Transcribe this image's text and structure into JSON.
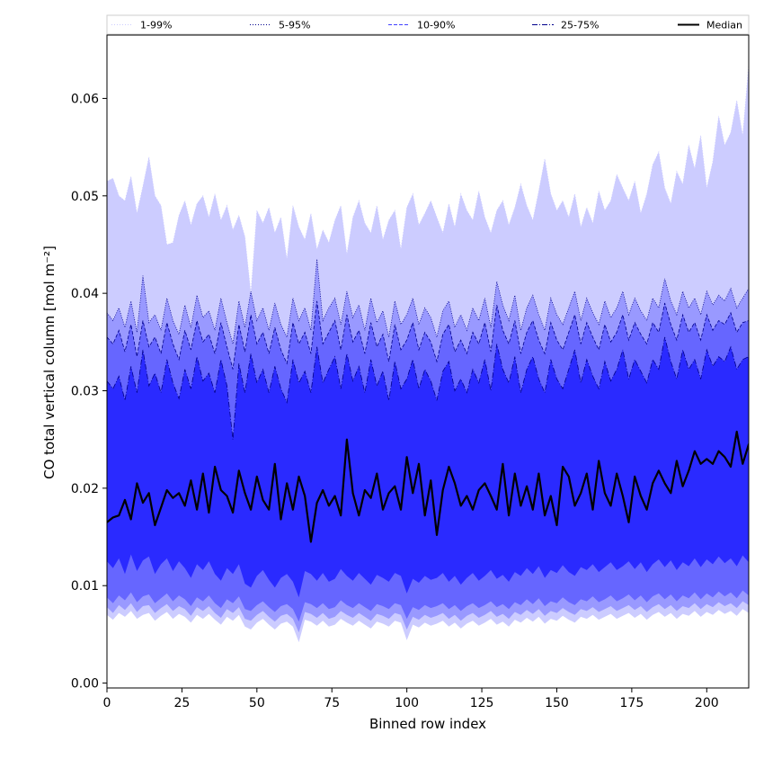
{
  "chart_data": {
    "type": "area",
    "xlabel": "Binned row index",
    "ylabel": "CO total vertical column [mol m⁻²]",
    "xlim": [
      0,
      214
    ],
    "ylim": [
      -0.0005,
      0.0665
    ],
    "xticks": [
      0,
      25,
      50,
      75,
      100,
      125,
      150,
      175,
      200
    ],
    "yticks": [
      0.0,
      0.01,
      0.02,
      0.03,
      0.04,
      0.05,
      0.06
    ],
    "ytick_labels": [
      "0.00",
      "0.01",
      "0.02",
      "0.03",
      "0.04",
      "0.05",
      "0.06"
    ],
    "grid": false,
    "legend_position": "top",
    "legend": [
      {
        "label": "1-99%",
        "color": "#ccccff",
        "style": "dotted"
      },
      {
        "label": "5-95%",
        "color": "#00008b",
        "style": "dotted"
      },
      {
        "label": "10-90%",
        "color": "#4040ff",
        "style": "dashed"
      },
      {
        "label": "25-75%",
        "color": "#00008b",
        "style": "dashdot"
      },
      {
        "label": "Median",
        "color": "#000000",
        "style": "solid"
      }
    ],
    "colors": {
      "band_1_99": "#ccccff",
      "band_5_95": "#9999ff",
      "band_10_90": "#6666ff",
      "band_25_75": "#2a2aff",
      "median": "#000000",
      "edge_1_99": "#ccccff",
      "edge_5_95": "#00008b",
      "edge_10_90": "#00008b",
      "edge_25_75": "#00008b"
    },
    "x_step": 2,
    "series_description_note": "",
    "series": [
      {
        "name": "1-99%",
        "kind": "band",
        "lower": [
          0.007,
          0.0065,
          0.0072,
          0.0068,
          0.0074,
          0.0066,
          0.007,
          0.0072,
          0.0064,
          0.0069,
          0.0073,
          0.0066,
          0.0071,
          0.0068,
          0.0062,
          0.007,
          0.0066,
          0.0071,
          0.0065,
          0.006,
          0.0068,
          0.0064,
          0.007,
          0.0058,
          0.0055,
          0.0062,
          0.0066,
          0.006,
          0.0055,
          0.0061,
          0.0063,
          0.0058,
          0.0042,
          0.0065,
          0.0063,
          0.0059,
          0.0064,
          0.0058,
          0.006,
          0.0066,
          0.0062,
          0.0059,
          0.0064,
          0.006,
          0.0056,
          0.0063,
          0.0061,
          0.0058,
          0.0064,
          0.0062,
          0.0044,
          0.006,
          0.0057,
          0.0062,
          0.0059,
          0.0061,
          0.0064,
          0.0058,
          0.0062,
          0.0056,
          0.0061,
          0.0064,
          0.0059,
          0.0062,
          0.0066,
          0.006,
          0.0063,
          0.0058,
          0.0065,
          0.0062,
          0.0067,
          0.0063,
          0.0068,
          0.0061,
          0.0066,
          0.0064,
          0.0069,
          0.0065,
          0.0062,
          0.0068,
          0.0066,
          0.007,
          0.0065,
          0.0068,
          0.0071,
          0.0066,
          0.0069,
          0.0072,
          0.0067,
          0.0071,
          0.0065,
          0.007,
          0.0073,
          0.0068,
          0.0072,
          0.0066,
          0.0071,
          0.0069,
          0.0074,
          0.0068,
          0.0073,
          0.007,
          0.0075,
          0.0071,
          0.0074,
          0.0069,
          0.0076,
          0.0072,
          0.0077
        ],
        "upper": [
          0.0515,
          0.0518,
          0.05,
          0.0495,
          0.052,
          0.0482,
          0.051,
          0.054,
          0.05,
          0.049,
          0.045,
          0.0452,
          0.048,
          0.0495,
          0.047,
          0.0492,
          0.05,
          0.0478,
          0.0502,
          0.0475,
          0.049,
          0.0465,
          0.048,
          0.0458,
          0.04,
          0.0485,
          0.0472,
          0.0488,
          0.0462,
          0.0478,
          0.0435,
          0.049,
          0.0468,
          0.0455,
          0.0482,
          0.0445,
          0.0465,
          0.0452,
          0.0475,
          0.049,
          0.044,
          0.0478,
          0.0495,
          0.0472,
          0.0462,
          0.049,
          0.0455,
          0.0475,
          0.0485,
          0.0445,
          0.0488,
          0.0502,
          0.047,
          0.0482,
          0.0495,
          0.0478,
          0.0462,
          0.0492,
          0.0468,
          0.0502,
          0.0485,
          0.0475,
          0.0505,
          0.0478,
          0.0462,
          0.0485,
          0.0495,
          0.047,
          0.0488,
          0.0512,
          0.049,
          0.0475,
          0.0505,
          0.0538,
          0.0502,
          0.0485,
          0.0495,
          0.0478,
          0.0502,
          0.0468,
          0.0488,
          0.0472,
          0.0505,
          0.0485,
          0.0495,
          0.0522,
          0.0508,
          0.0495,
          0.0515,
          0.0482,
          0.0502,
          0.0532,
          0.0545,
          0.0508,
          0.0492,
          0.0525,
          0.0512,
          0.0552,
          0.0528,
          0.0562,
          0.0508,
          0.0535,
          0.0582,
          0.0552,
          0.0565,
          0.0598,
          0.0562,
          0.0635,
          0.0545
        ]
      },
      {
        "name": "5-95%",
        "kind": "band",
        "lower": [
          0.0078,
          0.0072,
          0.008,
          0.0075,
          0.0082,
          0.0073,
          0.0079,
          0.008,
          0.0072,
          0.0077,
          0.0081,
          0.0074,
          0.0079,
          0.0076,
          0.0069,
          0.0078,
          0.0074,
          0.0079,
          0.0072,
          0.0067,
          0.0076,
          0.0072,
          0.0078,
          0.0066,
          0.0064,
          0.007,
          0.0074,
          0.0068,
          0.0063,
          0.0069,
          0.0071,
          0.0066,
          0.0052,
          0.0073,
          0.0071,
          0.0067,
          0.0072,
          0.0066,
          0.0068,
          0.0074,
          0.007,
          0.0067,
          0.0072,
          0.0068,
          0.0064,
          0.0071,
          0.0069,
          0.0066,
          0.0072,
          0.007,
          0.0055,
          0.0068,
          0.0065,
          0.007,
          0.0067,
          0.0069,
          0.0072,
          0.0066,
          0.007,
          0.0064,
          0.0069,
          0.0072,
          0.0067,
          0.007,
          0.0074,
          0.0068,
          0.0071,
          0.0066,
          0.0073,
          0.007,
          0.0075,
          0.0071,
          0.0076,
          0.0069,
          0.0074,
          0.0072,
          0.0077,
          0.0073,
          0.007,
          0.0076,
          0.0074,
          0.0078,
          0.0073,
          0.0076,
          0.0079,
          0.0074,
          0.0077,
          0.008,
          0.0075,
          0.0079,
          0.0073,
          0.0078,
          0.0081,
          0.0076,
          0.008,
          0.0074,
          0.0079,
          0.0077,
          0.0082,
          0.0076,
          0.0081,
          0.0078,
          0.0083,
          0.0079,
          0.0082,
          0.0077,
          0.0084,
          0.008,
          0.0085
        ],
        "upper": [
          0.038,
          0.0372,
          0.0385,
          0.0365,
          0.0392,
          0.036,
          0.0418,
          0.037,
          0.0378,
          0.0362,
          0.0395,
          0.0372,
          0.0358,
          0.0388,
          0.0365,
          0.0398,
          0.0375,
          0.0382,
          0.0362,
          0.0395,
          0.037,
          0.0348,
          0.0392,
          0.0365,
          0.0402,
          0.0372,
          0.0385,
          0.0362,
          0.039,
          0.0368,
          0.0355,
          0.0395,
          0.0372,
          0.0385,
          0.0362,
          0.0435,
          0.0372,
          0.0385,
          0.0395,
          0.0368,
          0.0402,
          0.0375,
          0.0388,
          0.0362,
          0.0395,
          0.037,
          0.0382,
          0.0355,
          0.0392,
          0.0368,
          0.0378,
          0.0395,
          0.0368,
          0.0385,
          0.0375,
          0.0355,
          0.0382,
          0.0392,
          0.0365,
          0.0378,
          0.0362,
          0.0385,
          0.0372,
          0.0395,
          0.0365,
          0.0412,
          0.0388,
          0.0372,
          0.0398,
          0.0362,
          0.0385,
          0.0398,
          0.0378,
          0.0362,
          0.0395,
          0.0378,
          0.0368,
          0.0385,
          0.0402,
          0.0372,
          0.0395,
          0.038,
          0.0368,
          0.0392,
          0.0375,
          0.0385,
          0.0402,
          0.0378,
          0.0395,
          0.0382,
          0.0372,
          0.0395,
          0.0385,
          0.0415,
          0.0392,
          0.0378,
          0.0402,
          0.0385,
          0.0395,
          0.0378,
          0.0402,
          0.0388,
          0.0398,
          0.0392,
          0.0405,
          0.0385,
          0.0395,
          0.0405,
          0.0408
        ]
      },
      {
        "name": "10-90%",
        "kind": "band",
        "lower": [
          0.0088,
          0.0082,
          0.009,
          0.0085,
          0.0093,
          0.0083,
          0.0089,
          0.0091,
          0.0082,
          0.0087,
          0.0092,
          0.0084,
          0.009,
          0.0086,
          0.0079,
          0.0088,
          0.0084,
          0.009,
          0.0082,
          0.0077,
          0.0086,
          0.0082,
          0.0089,
          0.0076,
          0.0074,
          0.008,
          0.0084,
          0.0078,
          0.0073,
          0.0079,
          0.0081,
          0.0076,
          0.0063,
          0.0083,
          0.0081,
          0.0077,
          0.0082,
          0.0076,
          0.0078,
          0.0085,
          0.008,
          0.0077,
          0.0082,
          0.0078,
          0.0074,
          0.0081,
          0.0079,
          0.0076,
          0.0082,
          0.008,
          0.0066,
          0.0078,
          0.0075,
          0.008,
          0.0077,
          0.0079,
          0.0082,
          0.0076,
          0.008,
          0.0074,
          0.0079,
          0.0082,
          0.0077,
          0.008,
          0.0084,
          0.0078,
          0.0081,
          0.0076,
          0.0083,
          0.008,
          0.0086,
          0.0081,
          0.0087,
          0.0079,
          0.0084,
          0.0082,
          0.0088,
          0.0083,
          0.008,
          0.0086,
          0.0084,
          0.0089,
          0.0083,
          0.0086,
          0.009,
          0.0084,
          0.0087,
          0.0091,
          0.0085,
          0.009,
          0.0083,
          0.0089,
          0.0092,
          0.0086,
          0.0091,
          0.0084,
          0.009,
          0.0087,
          0.0093,
          0.0086,
          0.0092,
          0.0088,
          0.0094,
          0.0089,
          0.0093,
          0.0087,
          0.0095,
          0.009,
          0.0096
        ],
        "upper": [
          0.0355,
          0.0348,
          0.0362,
          0.034,
          0.0368,
          0.0335,
          0.0372,
          0.0345,
          0.0355,
          0.0338,
          0.037,
          0.0348,
          0.0332,
          0.0362,
          0.0342,
          0.0372,
          0.035,
          0.0358,
          0.0338,
          0.037,
          0.0345,
          0.0322,
          0.0368,
          0.034,
          0.0378,
          0.0348,
          0.036,
          0.0338,
          0.0365,
          0.0342,
          0.0328,
          0.037,
          0.0348,
          0.036,
          0.0338,
          0.0392,
          0.0348,
          0.036,
          0.0372,
          0.0342,
          0.0378,
          0.035,
          0.0362,
          0.0338,
          0.037,
          0.0345,
          0.0358,
          0.033,
          0.0368,
          0.0342,
          0.0352,
          0.037,
          0.0342,
          0.036,
          0.035,
          0.033,
          0.0358,
          0.0368,
          0.034,
          0.0352,
          0.0338,
          0.036,
          0.0348,
          0.037,
          0.034,
          0.0388,
          0.0362,
          0.0348,
          0.0372,
          0.0338,
          0.036,
          0.0372,
          0.0352,
          0.0338,
          0.037,
          0.0352,
          0.0342,
          0.036,
          0.0378,
          0.0348,
          0.037,
          0.0355,
          0.0342,
          0.0368,
          0.035,
          0.036,
          0.0378,
          0.0352,
          0.037,
          0.0358,
          0.0348,
          0.037,
          0.036,
          0.039,
          0.0368,
          0.0352,
          0.0378,
          0.036,
          0.037,
          0.0352,
          0.0378,
          0.0362,
          0.0372,
          0.0368,
          0.038,
          0.036,
          0.037,
          0.0372,
          0.0372
        ]
      },
      {
        "name": "25-75%",
        "kind": "band",
        "lower": [
          0.0125,
          0.0118,
          0.0128,
          0.0112,
          0.0132,
          0.0115,
          0.0126,
          0.013,
          0.0112,
          0.0122,
          0.0128,
          0.0115,
          0.0125,
          0.0118,
          0.0108,
          0.0122,
          0.0116,
          0.0125,
          0.0112,
          0.0105,
          0.0118,
          0.0112,
          0.0122,
          0.0102,
          0.0098,
          0.011,
          0.0116,
          0.0106,
          0.0098,
          0.0108,
          0.0112,
          0.0104,
          0.0088,
          0.0115,
          0.0112,
          0.0105,
          0.0113,
          0.0104,
          0.0107,
          0.0117,
          0.011,
          0.0105,
          0.0113,
          0.0107,
          0.0101,
          0.0111,
          0.0108,
          0.0104,
          0.0113,
          0.011,
          0.0092,
          0.0107,
          0.0103,
          0.011,
          0.0106,
          0.0108,
          0.0113,
          0.0104,
          0.011,
          0.0101,
          0.0108,
          0.0113,
          0.0105,
          0.011,
          0.0116,
          0.0107,
          0.0111,
          0.0104,
          0.0114,
          0.011,
          0.0118,
          0.0112,
          0.012,
          0.0108,
          0.0116,
          0.0113,
          0.0121,
          0.0114,
          0.011,
          0.0119,
          0.0116,
          0.0122,
          0.0114,
          0.0119,
          0.0124,
          0.0116,
          0.012,
          0.0125,
          0.0117,
          0.0124,
          0.0114,
          0.0122,
          0.0127,
          0.0119,
          0.0126,
          0.0116,
          0.0124,
          0.012,
          0.0128,
          0.0119,
          0.0127,
          0.0122,
          0.013,
          0.0123,
          0.0128,
          0.012,
          0.0131,
          0.0124,
          0.0133
        ],
        "upper": [
          0.031,
          0.0302,
          0.0315,
          0.029,
          0.0325,
          0.0298,
          0.0342,
          0.0305,
          0.0318,
          0.0298,
          0.0332,
          0.0308,
          0.0292,
          0.0322,
          0.0302,
          0.0335,
          0.031,
          0.0318,
          0.0298,
          0.0332,
          0.0305,
          0.025,
          0.0328,
          0.0298,
          0.0338,
          0.0308,
          0.0322,
          0.0298,
          0.0325,
          0.0302,
          0.0288,
          0.0332,
          0.0308,
          0.032,
          0.0298,
          0.0345,
          0.0308,
          0.0322,
          0.0335,
          0.0302,
          0.0338,
          0.031,
          0.0325,
          0.0298,
          0.0332,
          0.0305,
          0.032,
          0.029,
          0.033,
          0.0302,
          0.0312,
          0.0332,
          0.0302,
          0.0322,
          0.031,
          0.029,
          0.032,
          0.033,
          0.03,
          0.0312,
          0.0298,
          0.0322,
          0.0308,
          0.0332,
          0.03,
          0.0348,
          0.0322,
          0.0308,
          0.0335,
          0.0298,
          0.0322,
          0.0335,
          0.0312,
          0.0298,
          0.0332,
          0.0312,
          0.0302,
          0.0322,
          0.0342,
          0.0308,
          0.0332,
          0.0315,
          0.0302,
          0.033,
          0.031,
          0.0322,
          0.0342,
          0.0312,
          0.0332,
          0.032,
          0.0308,
          0.0332,
          0.0322,
          0.0355,
          0.033,
          0.0312,
          0.0342,
          0.0322,
          0.0332,
          0.0312,
          0.0342,
          0.0325,
          0.0335,
          0.033,
          0.0345,
          0.0322,
          0.0332,
          0.0335,
          0.0335
        ]
      },
      {
        "name": "Median",
        "kind": "line",
        "values": [
          0.0165,
          0.017,
          0.0172,
          0.0188,
          0.0168,
          0.0205,
          0.0185,
          0.0195,
          0.0162,
          0.018,
          0.0198,
          0.019,
          0.0195,
          0.0182,
          0.0208,
          0.0178,
          0.0215,
          0.0175,
          0.0222,
          0.0198,
          0.0192,
          0.0175,
          0.0218,
          0.0195,
          0.0178,
          0.0212,
          0.0188,
          0.0178,
          0.0225,
          0.0168,
          0.0205,
          0.0178,
          0.0212,
          0.0192,
          0.0145,
          0.0185,
          0.0198,
          0.0182,
          0.0192,
          0.0172,
          0.025,
          0.0195,
          0.0172,
          0.0198,
          0.019,
          0.0215,
          0.0178,
          0.0195,
          0.0202,
          0.0178,
          0.0232,
          0.0195,
          0.0225,
          0.0172,
          0.0208,
          0.0152,
          0.0198,
          0.0222,
          0.0205,
          0.0182,
          0.0192,
          0.0178,
          0.0198,
          0.0205,
          0.0192,
          0.0178,
          0.0225,
          0.0172,
          0.0215,
          0.0182,
          0.0202,
          0.0178,
          0.0215,
          0.0172,
          0.0192,
          0.0162,
          0.0222,
          0.0212,
          0.0182,
          0.0195,
          0.0215,
          0.0178,
          0.0228,
          0.0195,
          0.0182,
          0.0215,
          0.0192,
          0.0165,
          0.0212,
          0.0192,
          0.0178,
          0.0205,
          0.0218,
          0.0205,
          0.0195,
          0.0228,
          0.0202,
          0.0218,
          0.0238,
          0.0225,
          0.023,
          0.0225,
          0.0238,
          0.0232,
          0.0222,
          0.0258,
          0.0225,
          0.0245,
          0.0252
        ]
      }
    ]
  }
}
